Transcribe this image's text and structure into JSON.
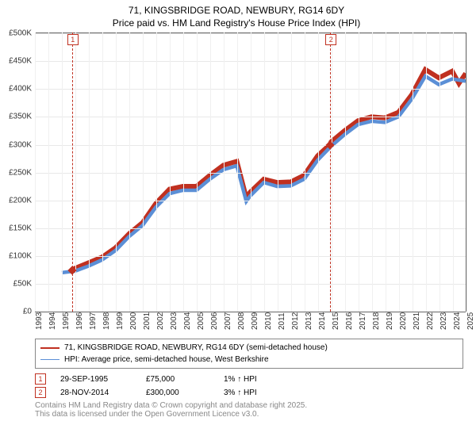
{
  "title_line1": "71, KINGSBRIDGE ROAD, NEWBURY, RG14 6DY",
  "title_line2": "Price paid vs. HM Land Registry's House Price Index (HPI)",
  "chart": {
    "type": "line",
    "background_color": "#ffffff",
    "grid_color": "#e8e8e8",
    "axis_color": "#666666",
    "font_size": 10,
    "x": {
      "min": 1993,
      "max": 2025,
      "tick_step": 1,
      "labels": [
        "1993",
        "1994",
        "1995",
        "1996",
        "1997",
        "1998",
        "1999",
        "2000",
        "2001",
        "2002",
        "2003",
        "2004",
        "2005",
        "2006",
        "2007",
        "2008",
        "2009",
        "2010",
        "2011",
        "2012",
        "2013",
        "2014",
        "2015",
        "2016",
        "2017",
        "2018",
        "2019",
        "2020",
        "2021",
        "2022",
        "2023",
        "2024",
        "2025"
      ]
    },
    "y": {
      "min": 0,
      "max": 500000,
      "tick_step": 50000,
      "labels": [
        "£0",
        "£50K",
        "£100K",
        "£150K",
        "£200K",
        "£250K",
        "£300K",
        "£350K",
        "£400K",
        "£450K",
        "£500K"
      ],
      "values": [
        0,
        50000,
        100000,
        150000,
        200000,
        250000,
        300000,
        350000,
        400000,
        450000,
        500000
      ]
    },
    "series": [
      {
        "name": "71, KINGSBRIDGE ROAD, NEWBURY, RG14 6DY (semi-detached house)",
        "color": "#c03020",
        "line_width": 2,
        "years": [
          1995.75,
          1996,
          1997,
          1998,
          1999,
          2000,
          2001,
          2002,
          2003,
          2004,
          2005,
          2006,
          2007,
          2008,
          2008.7,
          2009,
          2010,
          2011,
          2012,
          2013,
          2014,
          2014.9,
          2015,
          2016,
          2017,
          2018,
          2019,
          2020,
          2021,
          2022,
          2023,
          2024,
          2024.5,
          2025
        ],
        "values": [
          75000,
          78000,
          88000,
          98000,
          115000,
          140000,
          160000,
          195000,
          220000,
          225000,
          225000,
          245000,
          263000,
          270000,
          205000,
          215000,
          238000,
          232000,
          233000,
          245000,
          280000,
          300000,
          305000,
          325000,
          343000,
          350000,
          348000,
          358000,
          390000,
          435000,
          420000,
          432000,
          410000,
          428000
        ]
      },
      {
        "name": "HPI: Average price, semi-detached house, West Berkshire",
        "color": "#5b8fd6",
        "line_width": 1.5,
        "years": [
          1995,
          1996,
          1997,
          1998,
          1999,
          2000,
          2001,
          2002,
          2003,
          2004,
          2005,
          2006,
          2007,
          2008,
          2008.7,
          2009,
          2010,
          2011,
          2012,
          2013,
          2014,
          2015,
          2016,
          2017,
          2018,
          2019,
          2020,
          2021,
          2022,
          2023,
          2024,
          2025
        ],
        "values": [
          70000,
          73000,
          82000,
          93000,
          110000,
          135000,
          155000,
          188000,
          212000,
          218000,
          218000,
          238000,
          255000,
          262000,
          198000,
          208000,
          232000,
          225000,
          226000,
          238000,
          272000,
          297000,
          318000,
          336000,
          342000,
          340000,
          350000,
          382000,
          423000,
          408000,
          418000,
          414000
        ]
      }
    ],
    "sale_markers": [
      {
        "idx": "1",
        "year": 1995.75,
        "value": 75000
      },
      {
        "idx": "2",
        "year": 2014.9,
        "value": 300000
      }
    ]
  },
  "legend": {
    "items": [
      {
        "color": "#c03020",
        "label": "71, KINGSBRIDGE ROAD, NEWBURY, RG14 6DY (semi-detached house)",
        "width": 2
      },
      {
        "color": "#5b8fd6",
        "label": "HPI: Average price, semi-detached house, West Berkshire",
        "width": 1.5
      }
    ]
  },
  "sales": [
    {
      "idx": "1",
      "date": "29-SEP-1995",
      "price": "£75,000",
      "hpi": "1% ↑ HPI"
    },
    {
      "idx": "2",
      "date": "28-NOV-2014",
      "price": "£300,000",
      "hpi": "3% ↑ HPI"
    }
  ],
  "footer_line1": "Contains HM Land Registry data © Crown copyright and database right 2025.",
  "footer_line2": "This data is licensed under the Open Government Licence v3.0."
}
